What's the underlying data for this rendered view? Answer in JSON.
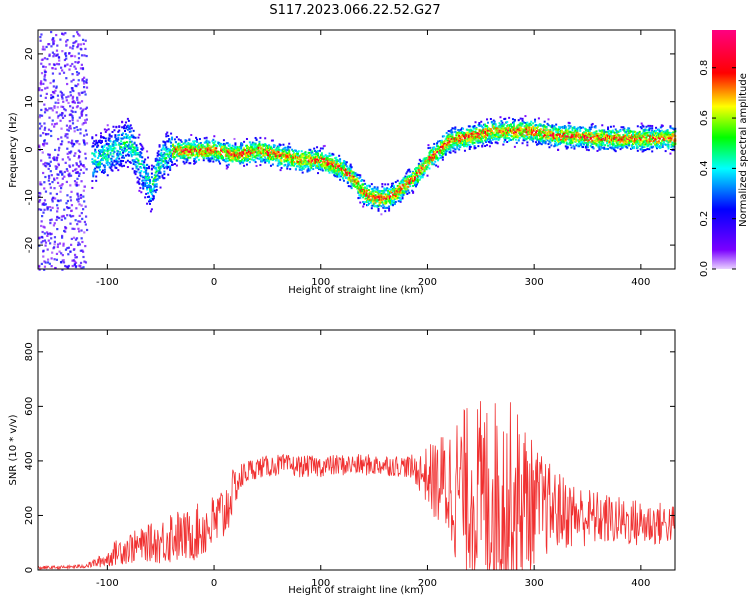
{
  "title": "S117.2023.066.22.52.G27",
  "chart_data": [
    {
      "type": "heatmap",
      "xlabel": "Height of straight line (km)",
      "ylabel": "Frequency (Hz)",
      "xlim": [
        -165,
        432
      ],
      "ylim": [
        -25,
        25
      ],
      "xticks": [
        -100,
        0,
        100,
        200,
        300,
        400
      ],
      "yticks": [
        -20,
        -10,
        0,
        10,
        20
      ],
      "colorbar": {
        "label": "Normalized spectral amplitude",
        "range": [
          0,
          0.95
        ],
        "ticks": [
          "0.0",
          "0.2",
          "0.4",
          "0.6",
          "0.8"
        ],
        "colors": [
          "#e9d2ff",
          "#7a00ff",
          "#0000ff",
          "#00ffff",
          "#00ff00",
          "#ffff00",
          "#ff0000",
          "#ff0080"
        ]
      },
      "frequency_track": {
        "x": [
          -110,
          -95,
          -80,
          -70,
          -60,
          -50,
          -40,
          -20,
          0,
          20,
          40,
          60,
          80,
          100,
          120,
          130,
          140,
          150,
          160,
          170,
          180,
          190,
          200,
          210,
          220,
          240,
          260,
          280,
          300,
          320,
          340,
          360,
          380,
          400,
          420,
          432
        ],
        "y": [
          -2,
          0,
          2,
          -3,
          -8,
          -2,
          0,
          0,
          0,
          -1,
          0,
          -1,
          -2,
          -2,
          -4,
          -6,
          -9,
          -10,
          -10,
          -9,
          -7,
          -5,
          -2,
          0,
          2,
          3,
          4,
          4,
          4,
          3,
          3,
          2.5,
          2.5,
          2.5,
          2.5,
          2.5
        ]
      }
    },
    {
      "type": "line",
      "xlabel": "Height of straight line (km)",
      "ylabel": "SNR (10 * v/v)",
      "xlim": [
        -165,
        432
      ],
      "ylim": [
        0,
        880
      ],
      "xticks": [
        -100,
        0,
        100,
        200,
        300,
        400
      ],
      "yticks": [
        0,
        200,
        400,
        600,
        800
      ],
      "color": "#f03030",
      "series": [
        {
          "x": [
            -165,
            -140,
            -120,
            -100,
            -90,
            -80,
            -70,
            -60,
            -50,
            -40,
            -30,
            -20,
            -10,
            0,
            10,
            20,
            30,
            40,
            60,
            80,
            100,
            120,
            140,
            160,
            180,
            190,
            200,
            210,
            220,
            230,
            240,
            250,
            260,
            270,
            280,
            290,
            300,
            320,
            340,
            360,
            380,
            400,
            420,
            432
          ],
          "y": [
            8,
            10,
            15,
            40,
            70,
            80,
            90,
            100,
            100,
            130,
            120,
            130,
            150,
            170,
            210,
            310,
            360,
            375,
            385,
            380,
            380,
            385,
            385,
            385,
            380,
            365,
            345,
            320,
            310,
            300,
            280,
            270,
            260,
            250,
            250,
            240,
            240,
            220,
            200,
            190,
            180,
            170,
            170,
            170
          ],
          "spread": [
            6,
            6,
            8,
            30,
            50,
            60,
            60,
            70,
            80,
            110,
            90,
            100,
            110,
            110,
            120,
            70,
            45,
            40,
            40,
            40,
            40,
            40,
            40,
            40,
            40,
            60,
            110,
            170,
            230,
            290,
            330,
            360,
            380,
            380,
            370,
            330,
            220,
            150,
            120,
            100,
            90,
            90,
            80,
            70
          ]
        }
      ]
    }
  ]
}
